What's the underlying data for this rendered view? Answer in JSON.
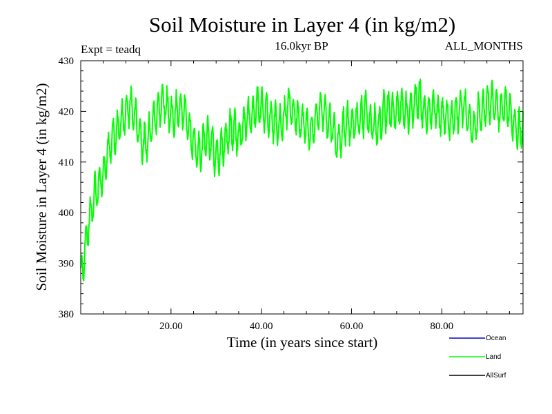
{
  "chart_data": {
    "type": "line",
    "title": "Soil Moisture in Layer 4 (in kg/m2)",
    "subtitle_left": "Expt = teadq",
    "subtitle_center": "16.0kyr BP",
    "subtitle_right": "ALL_MONTHS",
    "xlabel": "Time (in years since start)",
    "ylabel": "Soil Moisture in Layer 4 (in kg/m2)",
    "xlim": [
      0,
      98
    ],
    "ylim": [
      380,
      430
    ],
    "x_ticks": [
      20,
      40,
      60,
      80
    ],
    "x_tick_labels": [
      "20.00",
      "40.00",
      "60.00",
      "80.00"
    ],
    "y_ticks": [
      380,
      390,
      400,
      410,
      420,
      430
    ],
    "y_tick_labels": [
      "380",
      "390",
      "400",
      "410",
      "420",
      "430"
    ],
    "series": [
      {
        "name": "Land",
        "color": "#00ff00",
        "x": [
          0,
          1,
          2,
          3,
          4,
          5,
          6,
          7,
          8,
          9,
          10,
          11,
          12,
          13,
          14,
          15,
          16,
          17,
          18,
          19,
          20,
          21,
          22,
          23,
          24,
          25,
          26,
          27,
          28,
          29,
          30,
          31,
          32,
          33,
          34,
          35,
          36,
          37,
          38,
          39,
          40,
          41,
          42,
          43,
          44,
          45,
          46,
          47,
          48,
          49,
          50,
          51,
          52,
          53,
          54,
          55,
          56,
          57,
          58,
          59,
          60,
          61,
          62,
          63,
          64,
          65,
          66,
          67,
          68,
          69,
          70,
          71,
          72,
          73,
          74,
          75,
          76,
          77,
          78,
          79,
          80,
          81,
          82,
          83,
          84,
          85,
          86,
          87,
          88,
          89,
          90,
          91,
          92,
          93,
          94,
          95,
          96,
          97,
          98
        ],
        "values": [
          387,
          393,
          399,
          403,
          405,
          408,
          412,
          414,
          416,
          418,
          420,
          421,
          419,
          416,
          413,
          415,
          418,
          420,
          422,
          421,
          419,
          419,
          421,
          420,
          416,
          414,
          412,
          413,
          415,
          414,
          411,
          412,
          414,
          416,
          416,
          415,
          417,
          419,
          419,
          421,
          421,
          420,
          419,
          418,
          417,
          418,
          422,
          420,
          419,
          418,
          417,
          416,
          418,
          421,
          420,
          418,
          416,
          414,
          416,
          418,
          417,
          418,
          419,
          420,
          418,
          417,
          417,
          419,
          421,
          420,
          420,
          421,
          420,
          420,
          422,
          423,
          420,
          419,
          421,
          420,
          419,
          419,
          418,
          419,
          420,
          421,
          418,
          416,
          419,
          420,
          421,
          422,
          421,
          420,
          421,
          420,
          417,
          416,
          417
        ]
      }
    ],
    "legend": [
      {
        "label": "Ocean",
        "color": "#0000cc"
      },
      {
        "label": "Land",
        "color": "#00ff00"
      },
      {
        "label": "AllSurf",
        "color": "#000000"
      }
    ]
  }
}
